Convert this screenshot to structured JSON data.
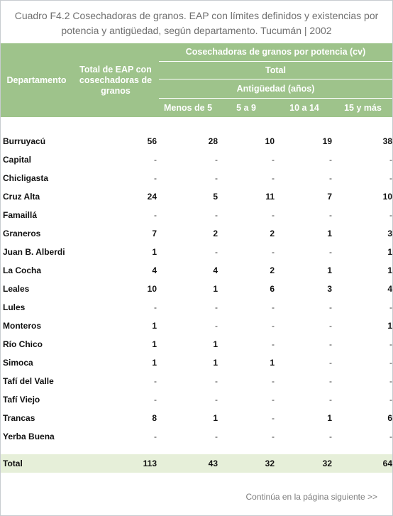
{
  "title": {
    "line1": "Cuadro F4.2 Cosechadoras de granos. EAP con límites definidos y existencias por",
    "line2": "potencia y antigüedad, según departamento. Tucumán | 2002"
  },
  "header": {
    "departamento": "Departamento",
    "total_eap": "Total de EAP con cosechadoras de granos",
    "por_potencia": "Cosechadoras de granos por potencia (cv)",
    "total": "Total",
    "antiguedad": "Antigüedad (años)",
    "cols": [
      "Menos de 5",
      "5 a 9",
      "10 a 14",
      "15 y más"
    ]
  },
  "rows": [
    {
      "name": "Burruyacú",
      "values": [
        "56",
        "28",
        "10",
        "19",
        "38"
      ]
    },
    {
      "name": "Capital",
      "values": [
        "-",
        "-",
        "-",
        "-",
        "-"
      ]
    },
    {
      "name": "Chicligasta",
      "values": [
        "-",
        "-",
        "-",
        "-",
        "-"
      ]
    },
    {
      "name": "Cruz Alta",
      "values": [
        "24",
        "5",
        "11",
        "7",
        "10"
      ]
    },
    {
      "name": "Famaillá",
      "values": [
        "-",
        "-",
        "-",
        "-",
        "-"
      ]
    },
    {
      "name": "Graneros",
      "values": [
        "7",
        "2",
        "2",
        "1",
        "3"
      ]
    },
    {
      "name": "Juan B. Alberdi",
      "values": [
        "1",
        "-",
        "-",
        "-",
        "1"
      ]
    },
    {
      "name": "La Cocha",
      "values": [
        "4",
        "4",
        "2",
        "1",
        "1"
      ]
    },
    {
      "name": "Leales",
      "values": [
        "10",
        "1",
        "6",
        "3",
        "4"
      ]
    },
    {
      "name": "Lules",
      "values": [
        "-",
        "-",
        "-",
        "-",
        "-"
      ]
    },
    {
      "name": "Monteros",
      "values": [
        "1",
        "-",
        "-",
        "-",
        "1"
      ]
    },
    {
      "name": "Río Chico",
      "values": [
        "1",
        "1",
        "-",
        "-",
        "-"
      ]
    },
    {
      "name": "Simoca",
      "values": [
        "1",
        "1",
        "1",
        "-",
        "-"
      ]
    },
    {
      "name": "Tafí del Valle",
      "values": [
        "-",
        "-",
        "-",
        "-",
        "-"
      ]
    },
    {
      "name": "Tafí Viejo",
      "values": [
        "-",
        "-",
        "-",
        "-",
        "-"
      ]
    },
    {
      "name": "Trancas",
      "values": [
        "8",
        "1",
        "-",
        "1",
        "6"
      ]
    },
    {
      "name": "Yerba Buena",
      "values": [
        "-",
        "-",
        "-",
        "-",
        "-"
      ]
    }
  ],
  "total": {
    "name": "Total",
    "values": [
      "113",
      "43",
      "32",
      "32",
      "64"
    ]
  },
  "footer": "Continúa en la página siguiente >>"
}
